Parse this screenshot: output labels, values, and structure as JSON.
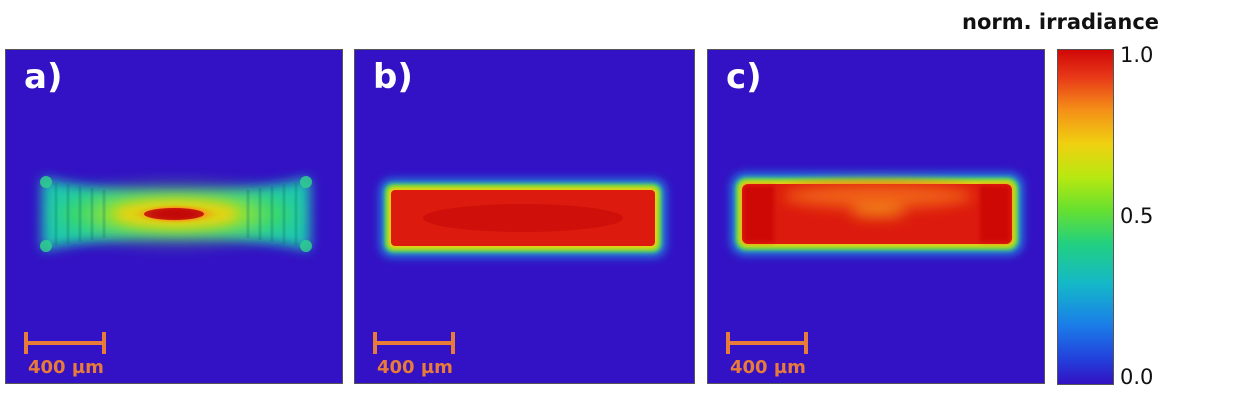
{
  "colors": {
    "background_field": "#3311C4",
    "scalebar": "#E87A3A"
  },
  "panels": [
    {
      "label": "a)",
      "scalebar_label": "400 µm",
      "profile": "gaussian-center-hot"
    },
    {
      "label": "b)",
      "scalebar_label": "400 µm",
      "profile": "flat-top-rectangle"
    },
    {
      "label": "c)",
      "scalebar_label": "400 µm",
      "profile": "flat-top-rectangle-edge-hot"
    }
  ],
  "colorbar": {
    "title": "norm. irradiance",
    "ticks": [
      {
        "label": "1.0",
        "value": 1.0
      },
      {
        "label": "0.5",
        "value": 0.5
      },
      {
        "label": "0.0",
        "value": 0.0
      }
    ],
    "colormap": "jet"
  }
}
